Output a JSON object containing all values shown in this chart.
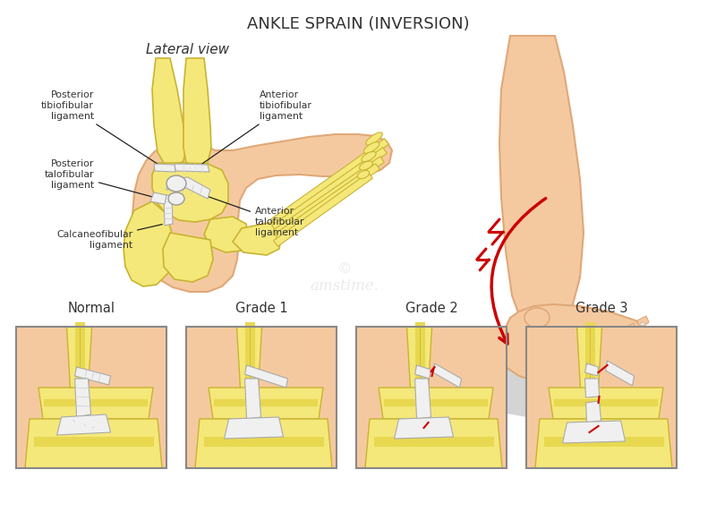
{
  "title": "ANKLE SPRAIN (INVERSION)",
  "title_fontsize": 13,
  "lateral_view_label": "Lateral view",
  "bg_color": "#ffffff",
  "bone_fill": "#f5e87a",
  "bone_outline": "#c8b432",
  "skin_fill": "#f5c9a0",
  "skin_outline": "#e0a878",
  "skin_dark": "#d4926a",
  "ligament_fill": "#f0f0f0",
  "ligament_outline": "#b0b0b0",
  "red_color": "#cc0000",
  "gray_shadow": "#c0c0c0",
  "text_color": "#333333",
  "grade_labels": [
    "Normal",
    "Grade 1",
    "Grade 2",
    "Grade 3"
  ],
  "box_bg_skin": "#f5c9a0",
  "box_bg_bone": "#f5e87a",
  "box_border": "#888888"
}
